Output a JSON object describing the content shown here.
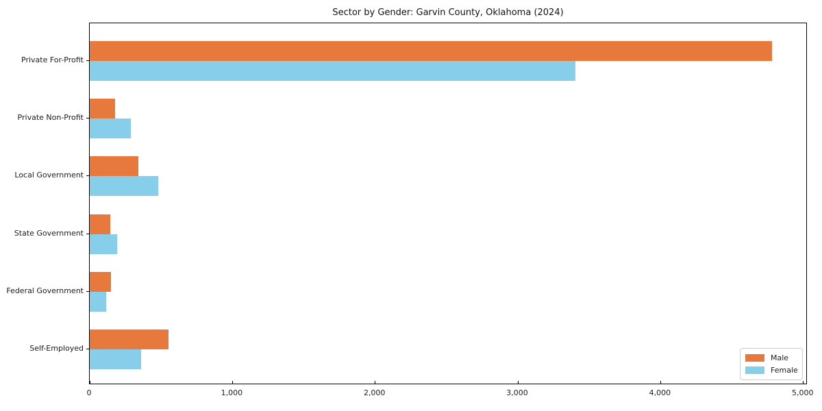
{
  "figure": {
    "background": "#ffffff",
    "axis_color": "#000000",
    "text_color": "#1a1a1a"
  },
  "chart_data": {
    "type": "bar",
    "orientation": "horizontal",
    "title": "Sector by Gender: Garvin County, Oklahoma (2024)",
    "categories": [
      "Private For-Profit",
      "Private Non-Profit",
      "Local Government",
      "State Government",
      "Federal Government",
      "Self-Employed"
    ],
    "series": [
      {
        "name": "Male",
        "color": "#e8793c",
        "values": [
          4790,
          180,
          340,
          145,
          150,
          555
        ]
      },
      {
        "name": "Female",
        "color": "#87ceeb",
        "values": [
          3410,
          290,
          480,
          190,
          115,
          360
        ]
      }
    ],
    "xlabel": "",
    "ylabel": "",
    "xlim": [
      0,
      5030
    ],
    "xticks": [
      0,
      1000,
      2000,
      3000,
      4000,
      5000
    ],
    "xtick_labels": [
      "0",
      "1,000",
      "2,000",
      "3,000",
      "4,000",
      "5,000"
    ],
    "grid": false,
    "legend": {
      "position": "lower right"
    }
  }
}
